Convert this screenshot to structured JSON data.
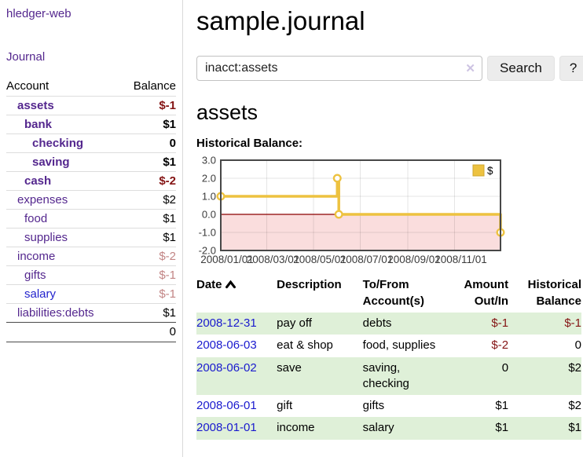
{
  "sidebar": {
    "app_title": "hledger-web",
    "nav": {
      "journal": "Journal"
    },
    "accounts_header": {
      "account": "Account",
      "balance": "Balance"
    },
    "accounts": [
      {
        "name": "assets",
        "depth": 1,
        "bold": true,
        "balance": "$-1",
        "neg": "strong"
      },
      {
        "name": "bank",
        "depth": 2,
        "bold": true,
        "balance": "$1"
      },
      {
        "name": "checking",
        "depth": 3,
        "bold": true,
        "balance": "0"
      },
      {
        "name": "saving",
        "depth": 3,
        "bold": true,
        "balance": "$1"
      },
      {
        "name": "cash",
        "depth": 2,
        "bold": true,
        "balance": "$-2",
        "neg": "strong"
      },
      {
        "name": "expenses",
        "depth": 1,
        "bold": false,
        "balance": "$2"
      },
      {
        "name": "food",
        "depth": 2,
        "bold": false,
        "balance": "$1"
      },
      {
        "name": "supplies",
        "depth": 2,
        "bold": false,
        "balance": "$1"
      },
      {
        "name": "income",
        "depth": 1,
        "bold": false,
        "balance": "$-2",
        "neg": "soft"
      },
      {
        "name": "gifts",
        "depth": 2,
        "bold": false,
        "balance": "$-1",
        "neg": "soft"
      },
      {
        "name": "salary",
        "depth": 2,
        "bold": false,
        "balance": "$-1",
        "neg": "soft",
        "link_style": "unvisited"
      },
      {
        "name": "liabilities:debts",
        "depth": 1,
        "bold": false,
        "balance": "$1"
      }
    ],
    "total": "0"
  },
  "main": {
    "title": "sample.journal",
    "search": {
      "value": "inacct:assets",
      "clear_icon": "✕",
      "search_button": "Search",
      "help_button": "?"
    },
    "account_heading": "assets",
    "chart_label": "Historical Balance:"
  },
  "chart_data": {
    "type": "line",
    "title": "Historical Balance:",
    "steps": true,
    "ylim": [
      -2,
      3
    ],
    "xlim_days": [
      0,
      365
    ],
    "y_ticks": [
      {
        "value": 3,
        "label": "3.0"
      },
      {
        "value": 2,
        "label": "2.0"
      },
      {
        "value": 1,
        "label": "1.0"
      },
      {
        "value": 0,
        "label": "0.0"
      },
      {
        "value": -1,
        "label": "-1.0"
      },
      {
        "value": -2,
        "label": "-2.0"
      }
    ],
    "x_ticks": [
      {
        "day": 0,
        "label": "2008/01/01"
      },
      {
        "day": 60,
        "label": "2008/03/01"
      },
      {
        "day": 121,
        "label": "2008/05/01"
      },
      {
        "day": 182,
        "label": "2008/07/01"
      },
      {
        "day": 244,
        "label": "2008/09/01"
      },
      {
        "day": 305,
        "label": "2008/11/01"
      }
    ],
    "series": [
      {
        "name": "$",
        "color": "#edc240",
        "points": [
          {
            "date": "2008-01-01",
            "day": 0,
            "value": 1
          },
          {
            "date": "2008-06-01",
            "day": 152,
            "value": 2
          },
          {
            "date": "2008-06-03",
            "day": 154,
            "value": 0
          },
          {
            "date": "2008-12-31",
            "day": 365,
            "value": -1
          }
        ]
      }
    ],
    "legend_position": "top-right",
    "negative_region_color": "#fadddd",
    "zero_line_color": "#8b0000",
    "grid": true
  },
  "register": {
    "headers": {
      "date": "Date",
      "description": "Description",
      "tofrom": "To/From\nAccount(s)",
      "amount": "Amount\nOut/In",
      "balance": "Historical\nBalance"
    },
    "rows": [
      {
        "date": "2008-12-31",
        "description": "pay off",
        "tofrom": "debts",
        "amount": "$-1",
        "balance": "$-1",
        "amount_neg": true,
        "balance_neg": true
      },
      {
        "date": "2008-06-03",
        "description": "eat & shop",
        "tofrom": "food, supplies",
        "amount": "$-2",
        "balance": "0",
        "amount_neg": true,
        "balance_neg": false
      },
      {
        "date": "2008-06-02",
        "description": "save",
        "tofrom": "saving,\nchecking",
        "amount": "0",
        "balance": "$2",
        "amount_neg": false,
        "balance_neg": false
      },
      {
        "date": "2008-06-01",
        "description": "gift",
        "tofrom": "gifts",
        "amount": "$1",
        "balance": "$2",
        "amount_neg": false,
        "balance_neg": false
      },
      {
        "date": "2008-01-01",
        "description": "income",
        "tofrom": "salary",
        "amount": "$1",
        "balance": "$1",
        "amount_neg": false,
        "balance_neg": false
      }
    ]
  },
  "colors": {
    "link_visited": "#54278e",
    "link_unvisited": "#2323cd",
    "negative_strong": "#841414",
    "negative_soft": "#c28585",
    "row_green": "#dff0d8",
    "series_gold": "#edc240"
  }
}
